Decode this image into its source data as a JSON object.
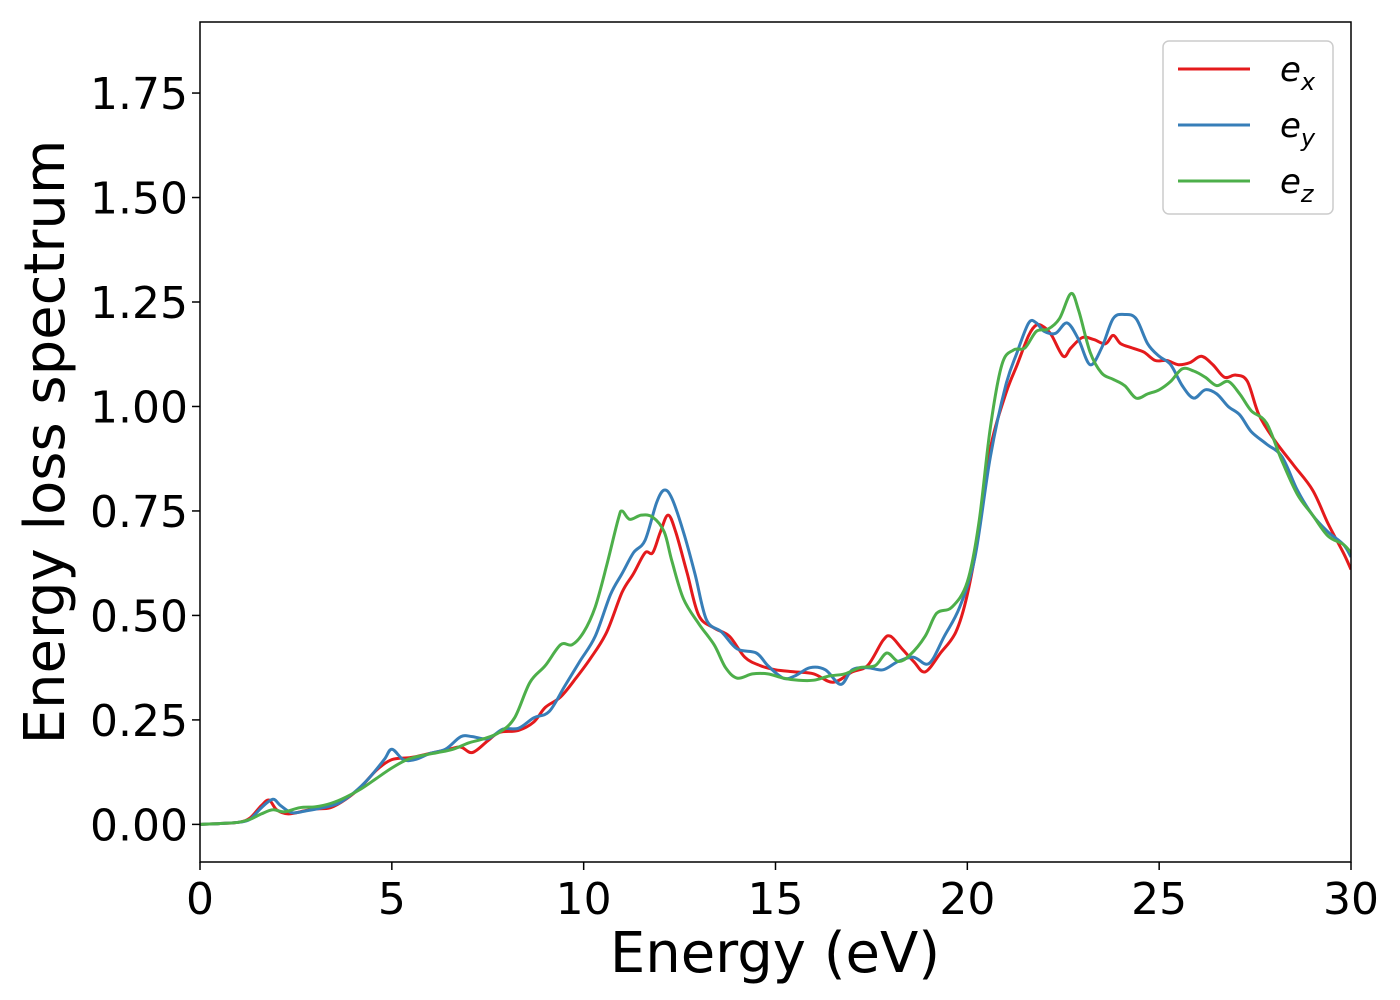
{
  "chart_data": {
    "type": "line",
    "title": "",
    "xlabel": "Energy (eV)",
    "ylabel": "Energy loss spectrum",
    "xlim": [
      0,
      30
    ],
    "ylim": [
      -0.09,
      1.92
    ],
    "xticks": [
      0,
      5,
      10,
      15,
      20,
      25,
      30
    ],
    "xtick_labels": [
      "0",
      "5",
      "10",
      "15",
      "20",
      "25",
      "30"
    ],
    "yticks": [
      0.0,
      0.25,
      0.5,
      0.75,
      1.0,
      1.25,
      1.5,
      1.75
    ],
    "ytick_labels": [
      "0.00",
      "0.25",
      "0.50",
      "0.75",
      "1.00",
      "1.25",
      "1.50",
      "1.75"
    ],
    "grid": false,
    "legend_position": "top-right",
    "series": [
      {
        "name": "e_x",
        "label_base": "e",
        "label_sub": "x",
        "color": "#e41a1c",
        "points": [
          [
            0,
            0
          ],
          [
            0.5,
            0.002
          ],
          [
            1.0,
            0.005
          ],
          [
            1.3,
            0.015
          ],
          [
            1.6,
            0.045
          ],
          [
            1.8,
            0.058
          ],
          [
            2.0,
            0.035
          ],
          [
            2.3,
            0.025
          ],
          [
            2.7,
            0.032
          ],
          [
            3.0,
            0.037
          ],
          [
            3.4,
            0.04
          ],
          [
            3.8,
            0.06
          ],
          [
            4.2,
            0.09
          ],
          [
            4.6,
            0.13
          ],
          [
            5.0,
            0.155
          ],
          [
            5.5,
            0.16
          ],
          [
            6.0,
            0.17
          ],
          [
            6.5,
            0.18
          ],
          [
            6.8,
            0.185
          ],
          [
            7.1,
            0.172
          ],
          [
            7.5,
            0.2
          ],
          [
            7.8,
            0.22
          ],
          [
            8.3,
            0.225
          ],
          [
            8.7,
            0.245
          ],
          [
            9.0,
            0.28
          ],
          [
            9.4,
            0.305
          ],
          [
            9.8,
            0.35
          ],
          [
            10.2,
            0.4
          ],
          [
            10.6,
            0.46
          ],
          [
            11.0,
            0.555
          ],
          [
            11.3,
            0.6
          ],
          [
            11.6,
            0.65
          ],
          [
            11.8,
            0.65
          ],
          [
            12.0,
            0.7
          ],
          [
            12.2,
            0.74
          ],
          [
            12.4,
            0.7
          ],
          [
            12.7,
            0.6
          ],
          [
            13.0,
            0.5
          ],
          [
            13.4,
            0.47
          ],
          [
            13.8,
            0.45
          ],
          [
            14.2,
            0.4
          ],
          [
            14.6,
            0.38
          ],
          [
            15.0,
            0.37
          ],
          [
            15.5,
            0.365
          ],
          [
            16.0,
            0.36
          ],
          [
            16.5,
            0.34
          ],
          [
            17.0,
            0.365
          ],
          [
            17.4,
            0.38
          ],
          [
            17.8,
            0.44
          ],
          [
            18.0,
            0.45
          ],
          [
            18.3,
            0.42
          ],
          [
            18.6,
            0.39
          ],
          [
            18.9,
            0.365
          ],
          [
            19.3,
            0.41
          ],
          [
            19.7,
            0.46
          ],
          [
            20.0,
            0.55
          ],
          [
            20.3,
            0.7
          ],
          [
            20.6,
            0.9
          ],
          [
            21.0,
            1.03
          ],
          [
            21.3,
            1.1
          ],
          [
            21.6,
            1.17
          ],
          [
            21.8,
            1.195
          ],
          [
            22.0,
            1.19
          ],
          [
            22.2,
            1.17
          ],
          [
            22.5,
            1.12
          ],
          [
            22.7,
            1.14
          ],
          [
            23.0,
            1.165
          ],
          [
            23.3,
            1.16
          ],
          [
            23.6,
            1.15
          ],
          [
            23.8,
            1.17
          ],
          [
            24.0,
            1.15
          ],
          [
            24.3,
            1.14
          ],
          [
            24.6,
            1.13
          ],
          [
            24.9,
            1.11
          ],
          [
            25.2,
            1.11
          ],
          [
            25.5,
            1.1
          ],
          [
            25.8,
            1.105
          ],
          [
            26.1,
            1.12
          ],
          [
            26.4,
            1.1
          ],
          [
            26.7,
            1.07
          ],
          [
            27.0,
            1.075
          ],
          [
            27.3,
            1.06
          ],
          [
            27.6,
            0.98
          ],
          [
            28.0,
            0.92
          ],
          [
            28.5,
            0.86
          ],
          [
            29.0,
            0.8
          ],
          [
            29.4,
            0.72
          ],
          [
            29.8,
            0.65
          ],
          [
            30.0,
            0.61
          ]
        ]
      },
      {
        "name": "e_y",
        "label_base": "e",
        "label_sub": "y",
        "color": "#377eb8",
        "points": [
          [
            0,
            0
          ],
          [
            0.5,
            0.002
          ],
          [
            1.0,
            0.005
          ],
          [
            1.3,
            0.012
          ],
          [
            1.6,
            0.04
          ],
          [
            1.9,
            0.06
          ],
          [
            2.1,
            0.045
          ],
          [
            2.4,
            0.028
          ],
          [
            2.8,
            0.033
          ],
          [
            3.2,
            0.04
          ],
          [
            3.6,
            0.05
          ],
          [
            4.0,
            0.075
          ],
          [
            4.4,
            0.11
          ],
          [
            4.8,
            0.155
          ],
          [
            5.0,
            0.18
          ],
          [
            5.3,
            0.155
          ],
          [
            5.6,
            0.155
          ],
          [
            6.0,
            0.17
          ],
          [
            6.4,
            0.18
          ],
          [
            6.8,
            0.21
          ],
          [
            7.1,
            0.21
          ],
          [
            7.5,
            0.205
          ],
          [
            7.9,
            0.228
          ],
          [
            8.3,
            0.23
          ],
          [
            8.7,
            0.255
          ],
          [
            9.1,
            0.27
          ],
          [
            9.5,
            0.33
          ],
          [
            9.9,
            0.39
          ],
          [
            10.3,
            0.45
          ],
          [
            10.7,
            0.55
          ],
          [
            11.0,
            0.6
          ],
          [
            11.3,
            0.65
          ],
          [
            11.6,
            0.68
          ],
          [
            11.9,
            0.77
          ],
          [
            12.1,
            0.8
          ],
          [
            12.3,
            0.78
          ],
          [
            12.6,
            0.7
          ],
          [
            12.9,
            0.6
          ],
          [
            13.2,
            0.49
          ],
          [
            13.6,
            0.46
          ],
          [
            14.0,
            0.42
          ],
          [
            14.5,
            0.41
          ],
          [
            14.8,
            0.38
          ],
          [
            15.2,
            0.35
          ],
          [
            15.5,
            0.355
          ],
          [
            15.9,
            0.375
          ],
          [
            16.3,
            0.37
          ],
          [
            16.7,
            0.335
          ],
          [
            17.0,
            0.37
          ],
          [
            17.4,
            0.375
          ],
          [
            17.8,
            0.37
          ],
          [
            18.2,
            0.39
          ],
          [
            18.6,
            0.4
          ],
          [
            19.0,
            0.385
          ],
          [
            19.4,
            0.45
          ],
          [
            19.8,
            0.52
          ],
          [
            20.2,
            0.64
          ],
          [
            20.6,
            0.88
          ],
          [
            21.0,
            1.05
          ],
          [
            21.3,
            1.13
          ],
          [
            21.6,
            1.2
          ],
          [
            21.8,
            1.2
          ],
          [
            22.0,
            1.18
          ],
          [
            22.3,
            1.175
          ],
          [
            22.6,
            1.2
          ],
          [
            22.9,
            1.16
          ],
          [
            23.2,
            1.1
          ],
          [
            23.5,
            1.14
          ],
          [
            23.8,
            1.21
          ],
          [
            24.1,
            1.22
          ],
          [
            24.4,
            1.21
          ],
          [
            24.7,
            1.15
          ],
          [
            25.0,
            1.12
          ],
          [
            25.3,
            1.1
          ],
          [
            25.6,
            1.05
          ],
          [
            25.9,
            1.02
          ],
          [
            26.2,
            1.04
          ],
          [
            26.5,
            1.03
          ],
          [
            26.8,
            1.0
          ],
          [
            27.1,
            0.98
          ],
          [
            27.4,
            0.94
          ],
          [
            27.8,
            0.91
          ],
          [
            28.2,
            0.88
          ],
          [
            28.6,
            0.8
          ],
          [
            29.0,
            0.74
          ],
          [
            29.4,
            0.7
          ],
          [
            29.8,
            0.67
          ],
          [
            30.0,
            0.64
          ]
        ]
      },
      {
        "name": "e_z",
        "label_base": "e",
        "label_sub": "z",
        "color": "#4daf4a",
        "points": [
          [
            0,
            0
          ],
          [
            0.5,
            0.002
          ],
          [
            1.0,
            0.005
          ],
          [
            1.3,
            0.012
          ],
          [
            1.6,
            0.025
          ],
          [
            1.9,
            0.035
          ],
          [
            2.2,
            0.03
          ],
          [
            2.6,
            0.04
          ],
          [
            3.0,
            0.042
          ],
          [
            3.4,
            0.05
          ],
          [
            3.8,
            0.065
          ],
          [
            4.2,
            0.085
          ],
          [
            4.6,
            0.11
          ],
          [
            5.0,
            0.135
          ],
          [
            5.4,
            0.155
          ],
          [
            5.8,
            0.165
          ],
          [
            6.2,
            0.172
          ],
          [
            6.6,
            0.18
          ],
          [
            7.0,
            0.195
          ],
          [
            7.4,
            0.205
          ],
          [
            7.8,
            0.22
          ],
          [
            8.2,
            0.255
          ],
          [
            8.6,
            0.34
          ],
          [
            9.0,
            0.38
          ],
          [
            9.4,
            0.43
          ],
          [
            9.7,
            0.43
          ],
          [
            10.0,
            0.46
          ],
          [
            10.3,
            0.52
          ],
          [
            10.6,
            0.62
          ],
          [
            10.9,
            0.73
          ],
          [
            11.0,
            0.75
          ],
          [
            11.2,
            0.73
          ],
          [
            11.5,
            0.74
          ],
          [
            11.8,
            0.735
          ],
          [
            12.1,
            0.7
          ],
          [
            12.3,
            0.63
          ],
          [
            12.6,
            0.54
          ],
          [
            13.0,
            0.48
          ],
          [
            13.4,
            0.43
          ],
          [
            13.7,
            0.375
          ],
          [
            14.0,
            0.35
          ],
          [
            14.4,
            0.36
          ],
          [
            14.8,
            0.36
          ],
          [
            15.2,
            0.35
          ],
          [
            15.6,
            0.345
          ],
          [
            16.0,
            0.345
          ],
          [
            16.4,
            0.355
          ],
          [
            16.8,
            0.36
          ],
          [
            17.2,
            0.375
          ],
          [
            17.6,
            0.38
          ],
          [
            17.9,
            0.41
          ],
          [
            18.2,
            0.39
          ],
          [
            18.5,
            0.405
          ],
          [
            18.9,
            0.45
          ],
          [
            19.2,
            0.505
          ],
          [
            19.6,
            0.52
          ],
          [
            20.0,
            0.58
          ],
          [
            20.3,
            0.72
          ],
          [
            20.6,
            0.95
          ],
          [
            20.9,
            1.1
          ],
          [
            21.2,
            1.135
          ],
          [
            21.5,
            1.14
          ],
          [
            21.8,
            1.18
          ],
          [
            22.1,
            1.185
          ],
          [
            22.4,
            1.21
          ],
          [
            22.7,
            1.27
          ],
          [
            22.9,
            1.23
          ],
          [
            23.2,
            1.13
          ],
          [
            23.5,
            1.08
          ],
          [
            23.8,
            1.065
          ],
          [
            24.1,
            1.05
          ],
          [
            24.4,
            1.02
          ],
          [
            24.7,
            1.03
          ],
          [
            25.0,
            1.04
          ],
          [
            25.3,
            1.06
          ],
          [
            25.6,
            1.09
          ],
          [
            25.9,
            1.085
          ],
          [
            26.2,
            1.07
          ],
          [
            26.5,
            1.05
          ],
          [
            26.8,
            1.06
          ],
          [
            27.1,
            1.03
          ],
          [
            27.4,
            0.99
          ],
          [
            27.8,
            0.96
          ],
          [
            28.2,
            0.87
          ],
          [
            28.6,
            0.79
          ],
          [
            29.0,
            0.74
          ],
          [
            29.4,
            0.69
          ],
          [
            29.8,
            0.67
          ],
          [
            30.0,
            0.65
          ]
        ]
      }
    ]
  }
}
